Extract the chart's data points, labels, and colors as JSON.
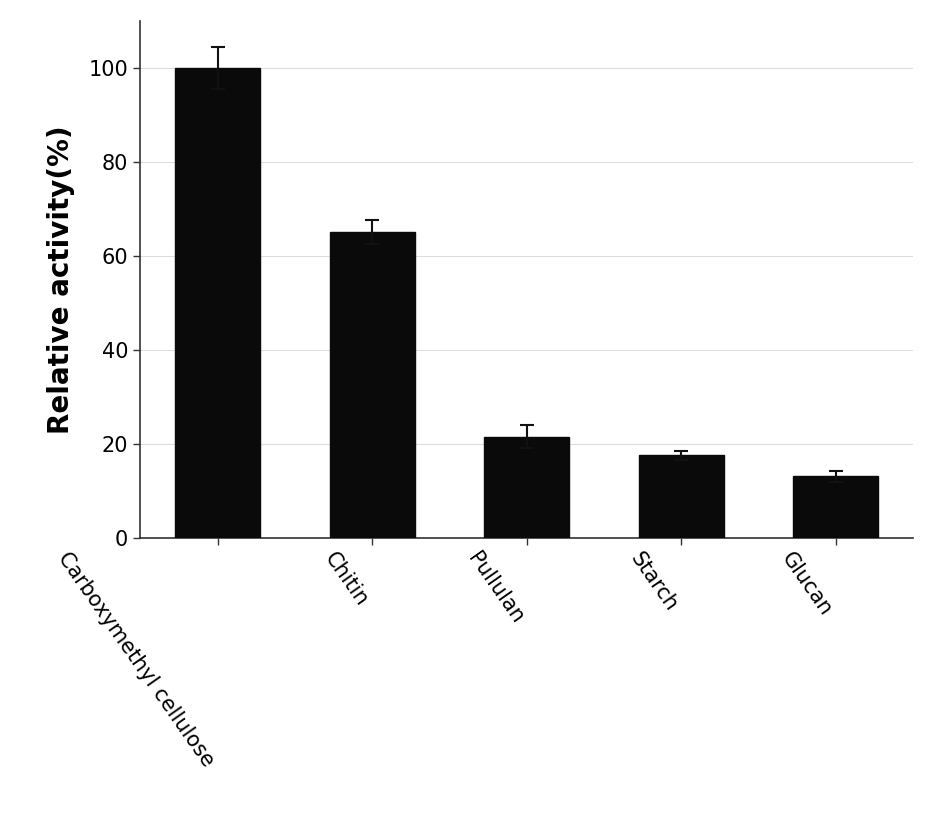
{
  "categories": [
    "Carboxymethyl cellulose",
    "Chitin",
    "Pullulan",
    "Starch",
    "Glucan"
  ],
  "values": [
    100,
    65,
    21.5,
    17.5,
    13
  ],
  "errors": [
    4.5,
    2.5,
    2.5,
    1.0,
    1.2
  ],
  "bar_color": "#0a0a0a",
  "bar_width": 0.55,
  "ylabel": "Relative activity(%)",
  "ylim": [
    0,
    110
  ],
  "yticks": [
    0,
    20,
    40,
    60,
    80,
    100
  ],
  "background_color": "#ffffff",
  "ylabel_fontsize": 20,
  "tick_fontsize": 15,
  "xtick_rotation": -55,
  "xtick_ha": "right",
  "grid_color": "#dddddd",
  "grid_linewidth": 0.8,
  "error_capsize": 5,
  "error_linewidth": 1.5,
  "error_color": "#111111",
  "spine_color": "#333333",
  "spine_linewidth": 1.2
}
